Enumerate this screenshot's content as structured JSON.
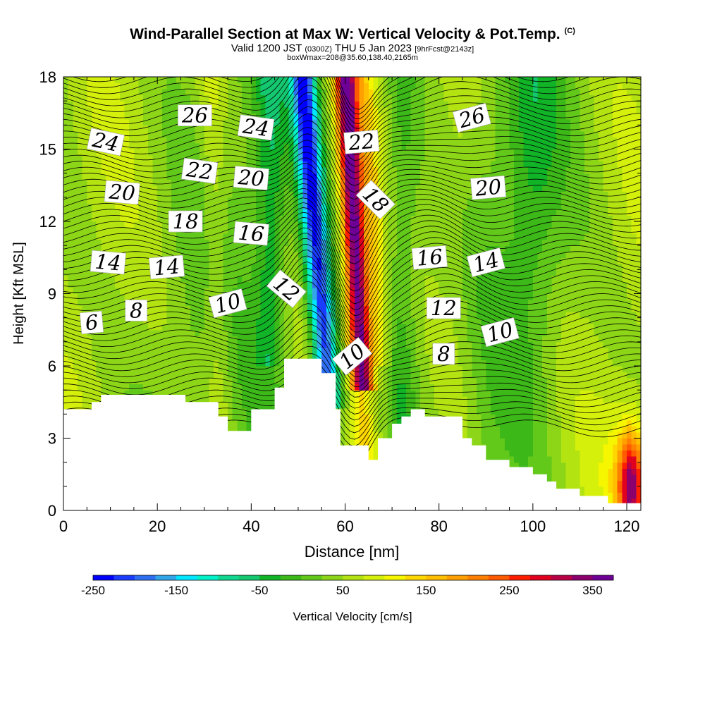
{
  "header": {
    "title_main": "Wind-Parallel Section at Max W: Vertical Velocity & Pot.Temp.",
    "title_mark": "(C)",
    "valid_prefix": "Valid 1200 JST",
    "valid_utc": "(0300Z)",
    "valid_date": "THU 5 Jan 2023",
    "valid_fcst": "[9hrFcst@2143z]",
    "box_info": "boxWmax=208@35.60,138.40,2165m"
  },
  "chart_data": {
    "type": "heatmap",
    "xlabel": "Distance [nm]",
    "ylabel": "Height [Kft MSL]",
    "xlim": [
      0,
      123
    ],
    "ylim": [
      0,
      18
    ],
    "x_ticks": [
      0,
      20,
      40,
      60,
      80,
      100,
      120
    ],
    "y_ticks": [
      0,
      3,
      6,
      9,
      12,
      15,
      18
    ],
    "colorbar": {
      "label": "Vertical Velocity [cm/s]",
      "range": [
        -250,
        375
      ],
      "tick_values": [
        -250,
        -150,
        -50,
        50,
        150,
        250,
        350
      ],
      "tick_labels": [
        "-250",
        "-150",
        "-50",
        "50",
        "150",
        "250",
        "350"
      ],
      "colors": [
        "#0000ff",
        "#1a3cff",
        "#2e6ff2",
        "#33a6ea",
        "#00e6ff",
        "#00f0c8",
        "#10d890",
        "#14c870",
        "#11b327",
        "#3cb818",
        "#62c81a",
        "#8cd617",
        "#b4e312",
        "#d5f00a",
        "#f6f600",
        "#ffd700",
        "#ffbe00",
        "#ffa000",
        "#ff8000",
        "#ff5a00",
        "#ff1e00",
        "#e1001e",
        "#b90046",
        "#8c006e",
        "#6e0096"
      ]
    },
    "velocity_cm_s": {
      "heights_kft": [
        0,
        1,
        2,
        3,
        4,
        5,
        6,
        7,
        8,
        9,
        10,
        11,
        12,
        13,
        14,
        15,
        16,
        17,
        18
      ],
      "features": [
        {
          "kind": "downdraft",
          "x_nm_top": 51,
          "x_nm_bottom": 56,
          "min": -240
        },
        {
          "kind": "updraft",
          "x_nm_top": 60,
          "x_nm_bottom": 63,
          "max": 300
        },
        {
          "kind": "updraft",
          "x_nm_top": 31,
          "x_nm_bottom": 37,
          "max": 90
        },
        {
          "kind": "updraft",
          "x_nm_top": 84,
          "x_nm_bottom": 84,
          "max": 80
        },
        {
          "kind": "downdraft",
          "x_nm_top": 44,
          "x_nm_bottom": 44,
          "min": -60
        },
        {
          "kind": "downdraft",
          "x_nm_top": 72,
          "x_nm_bottom": 72,
          "min": -60
        },
        {
          "kind": "updraft",
          "x_nm_top": 115,
          "x_nm_bottom": 120,
          "max": 350
        }
      ]
    },
    "terrain_kft": {
      "x_nm": [
        0,
        6,
        6,
        8,
        8,
        10,
        10,
        26,
        26,
        33,
        33,
        35,
        35,
        38,
        38,
        40,
        40,
        45,
        45,
        47,
        47,
        55,
        55,
        58,
        58,
        59,
        59,
        61,
        61,
        65,
        65,
        67,
        67,
        70,
        70,
        72,
        72,
        74,
        74,
        77,
        77,
        85,
        85,
        87,
        87,
        90,
        90,
        95,
        95,
        100,
        100,
        103,
        103,
        105,
        105,
        110,
        110,
        116,
        116,
        123
      ],
      "height": [
        4.2,
        4.2,
        4.5,
        4.5,
        4.8,
        4.8,
        4.8,
        4.8,
        4.5,
        4.5,
        3.9,
        3.9,
        3.3,
        3.3,
        3.3,
        3.3,
        4.2,
        4.2,
        5.1,
        5.1,
        6.3,
        6.3,
        5.7,
        5.7,
        4.2,
        4.2,
        2.7,
        2.7,
        2.7,
        2.7,
        2.1,
        2.1,
        3.0,
        3.0,
        3.6,
        3.6,
        3.9,
        3.9,
        4.2,
        4.2,
        3.9,
        3.9,
        3.0,
        3.0,
        2.7,
        2.7,
        2.1,
        2.1,
        1.8,
        1.8,
        1.5,
        1.5,
        1.2,
        1.2,
        0.9,
        0.9,
        0.6,
        0.6,
        0.3,
        0.3
      ]
    },
    "isentrope_labels": [
      {
        "text": "24",
        "x_nm": 9,
        "y_kft": 15.3,
        "rot": 12
      },
      {
        "text": "26",
        "x_nm": 28,
        "y_kft": 16.4,
        "rot": 0
      },
      {
        "text": "24",
        "x_nm": 41,
        "y_kft": 15.9,
        "rot": 8
      },
      {
        "text": "22",
        "x_nm": 29,
        "y_kft": 14.1,
        "rot": 8
      },
      {
        "text": "20",
        "x_nm": 40,
        "y_kft": 13.8,
        "rot": 5
      },
      {
        "text": "20",
        "x_nm": 12.5,
        "y_kft": 13.2,
        "rot": 5
      },
      {
        "text": "18",
        "x_nm": 26,
        "y_kft": 12.0,
        "rot": 0
      },
      {
        "text": "16",
        "x_nm": 40,
        "y_kft": 11.5,
        "rot": 5
      },
      {
        "text": "14",
        "x_nm": 9.5,
        "y_kft": 10.3,
        "rot": 5
      },
      {
        "text": "14",
        "x_nm": 22,
        "y_kft": 10.1,
        "rot": -5
      },
      {
        "text": "12",
        "x_nm": 47.5,
        "y_kft": 9.2,
        "rot": 40
      },
      {
        "text": "10",
        "x_nm": 35,
        "y_kft": 8.6,
        "rot": -15
      },
      {
        "text": "8",
        "x_nm": 15.5,
        "y_kft": 8.3,
        "rot": 0
      },
      {
        "text": "6",
        "x_nm": 6,
        "y_kft": 7.8,
        "rot": -5
      },
      {
        "text": "22",
        "x_nm": 63.5,
        "y_kft": 15.3,
        "rot": -5
      },
      {
        "text": "18",
        "x_nm": 66.5,
        "y_kft": 12.9,
        "rot": 45
      },
      {
        "text": "10",
        "x_nm": 61.5,
        "y_kft": 6.4,
        "rot": -40
      },
      {
        "text": "26",
        "x_nm": 87,
        "y_kft": 16.3,
        "rot": -15
      },
      {
        "text": "20",
        "x_nm": 90.5,
        "y_kft": 13.4,
        "rot": -5
      },
      {
        "text": "16",
        "x_nm": 78,
        "y_kft": 10.5,
        "rot": -5
      },
      {
        "text": "14",
        "x_nm": 90,
        "y_kft": 10.3,
        "rot": -15
      },
      {
        "text": "12",
        "x_nm": 81,
        "y_kft": 8.4,
        "rot": 0
      },
      {
        "text": "10",
        "x_nm": 93,
        "y_kft": 7.4,
        "rot": -15
      },
      {
        "text": "8",
        "x_nm": 81,
        "y_kft": 6.5,
        "rot": 0
      }
    ]
  }
}
